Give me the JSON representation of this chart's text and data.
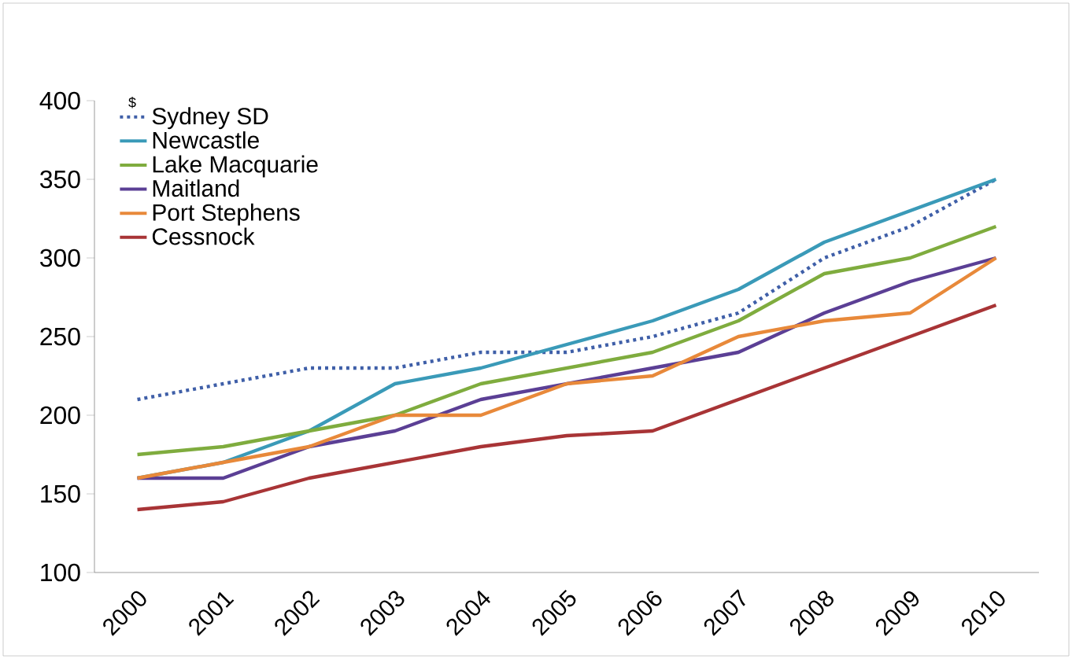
{
  "chart_data": {
    "type": "line",
    "ylabel": "$",
    "categories": [
      "2000",
      "2001",
      "2002",
      "2003",
      "2004",
      "2005",
      "2006",
      "2007",
      "2008",
      "2009",
      "2010"
    ],
    "ylim": [
      100,
      400
    ],
    "yticks": [
      100,
      150,
      200,
      250,
      300,
      350,
      400
    ],
    "grid": false,
    "legend": "top left",
    "marker": "none",
    "series": [
      {
        "name": "Sydney SD",
        "color": "#3f5fa8",
        "line_style": "dotted",
        "values": [
          210,
          220,
          230,
          230,
          240,
          240,
          250,
          265,
          300,
          320,
          350
        ]
      },
      {
        "name": "Newcastle",
        "color": "#3a9ab8",
        "values": [
          160,
          170,
          190,
          220,
          230,
          245,
          260,
          280,
          310,
          330,
          350
        ]
      },
      {
        "name": "Lake Macquarie",
        "color": "#7fac3e",
        "values": [
          175,
          180,
          190,
          200,
          220,
          230,
          240,
          260,
          290,
          300,
          320
        ]
      },
      {
        "name": "Maitland",
        "color": "#5b3f95",
        "values": [
          160,
          160,
          180,
          190,
          210,
          220,
          230,
          240,
          265,
          285,
          300
        ]
      },
      {
        "name": "Port Stephens",
        "color": "#e8893a",
        "values": [
          160,
          170,
          180,
          200,
          200,
          220,
          225,
          250,
          260,
          265,
          300
        ]
      },
      {
        "name": "Cessnock",
        "color": "#a83436",
        "values": [
          140,
          145,
          160,
          170,
          180,
          187,
          190,
          210,
          230,
          250,
          270
        ]
      }
    ]
  }
}
